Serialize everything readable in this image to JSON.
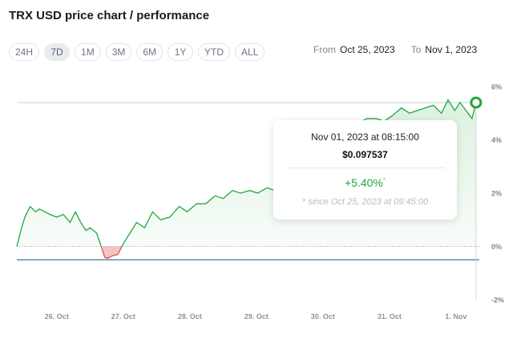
{
  "title": "TRX USD price chart / performance",
  "ranges": [
    "24H",
    "7D",
    "1M",
    "3M",
    "6M",
    "1Y",
    "YTD",
    "ALL"
  ],
  "active_range": "7D",
  "from_label": "From",
  "from_value": "Oct 25, 2023",
  "to_label": "To",
  "to_value": "Nov 1, 2023",
  "tooltip": {
    "date": "Nov 01, 2023 at 08:15:00",
    "price": "$0.097537",
    "perf": "+5.40%",
    "perf_mark": "*",
    "since": "* since Oct 25, 2023 at 09:45:00"
  },
  "colors": {
    "up": "#21a83c",
    "down": "#e05252",
    "baseline": "#1f4a8c",
    "grid": "#e6e8eb"
  },
  "chart_data": {
    "type": "line",
    "ylim": [
      -2,
      6
    ],
    "y_ticks": [
      "6%",
      "4%",
      "2%",
      "0%",
      "-2%"
    ],
    "y_tick_values": [
      6,
      4,
      2,
      0,
      -2
    ],
    "x_ticks": [
      "26. Oct",
      "27. Oct",
      "28. Oct",
      "29. Oct",
      "30. Oct",
      "31. Oct",
      "1. Nov"
    ],
    "x_tick_days": [
      0.6,
      1.6,
      2.6,
      3.6,
      4.6,
      5.6,
      6.6
    ],
    "x_range_days": [
      0,
      6.95
    ],
    "series": [
      {
        "x_days": [
          0,
          0.06,
          0.12,
          0.2,
          0.28,
          0.34,
          0.42,
          0.5,
          0.6,
          0.7,
          0.8,
          0.88,
          0.96,
          1.04,
          1.1,
          1.2,
          1.28,
          1.32,
          1.36,
          1.44,
          1.52,
          1.6,
          1.7,
          1.8,
          1.92,
          2.04,
          2.16,
          2.3,
          2.44,
          2.56,
          2.7,
          2.84,
          2.98,
          3.1,
          3.24,
          3.36,
          3.5,
          3.62,
          3.76,
          3.88,
          4.0,
          4.14,
          4.28,
          4.42,
          4.56,
          4.7,
          4.84,
          4.98,
          5.12,
          5.26,
          5.4,
          5.52,
          5.64,
          5.78,
          5.9,
          6.02,
          6.14,
          6.26,
          6.38,
          6.48,
          6.58,
          6.66,
          6.72,
          6.78,
          6.84,
          6.9
        ],
        "values": [
          0,
          0.6,
          1.1,
          1.5,
          1.3,
          1.4,
          1.3,
          1.2,
          1.1,
          1.2,
          0.9,
          1.3,
          0.9,
          0.6,
          0.7,
          0.5,
          -0.1,
          -0.4,
          -0.45,
          -0.35,
          -0.3,
          0.1,
          0.5,
          0.9,
          0.7,
          1.3,
          1.0,
          1.1,
          1.5,
          1.3,
          1.6,
          1.6,
          1.9,
          1.8,
          2.1,
          2.0,
          2.1,
          2.0,
          2.2,
          2.1,
          2.4,
          2.6,
          2.8,
          3.0,
          3.2,
          3.6,
          3.9,
          4.1,
          4.6,
          4.8,
          4.8,
          4.7,
          4.9,
          5.2,
          5.0,
          5.1,
          5.2,
          5.3,
          5.0,
          5.5,
          5.1,
          5.4,
          5.2,
          5.0,
          4.8,
          5.4
        ]
      }
    ],
    "highlight": {
      "x_day": 6.9,
      "value": 5.4
    }
  }
}
